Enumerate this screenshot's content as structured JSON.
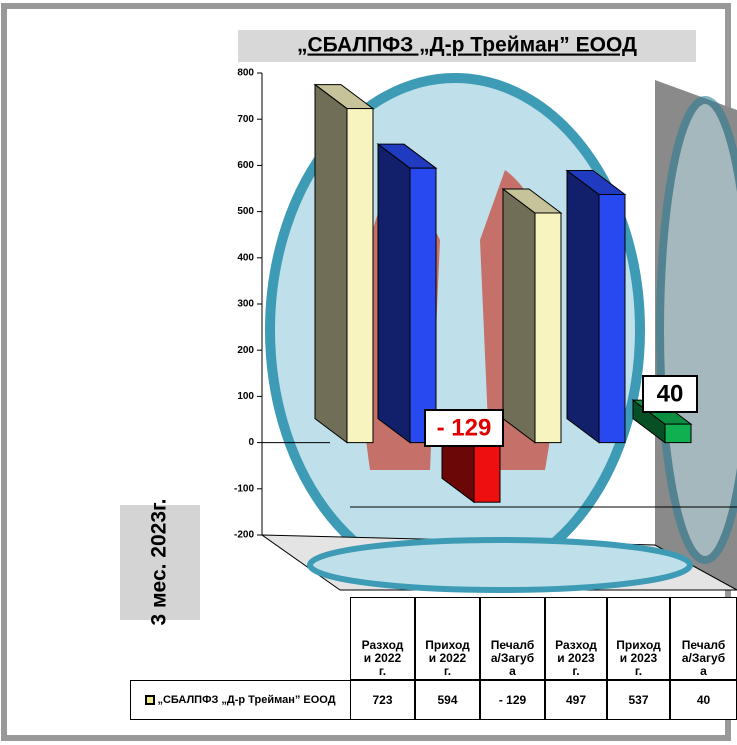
{
  "chart_data": {
    "type": "bar3d",
    "title": "„СБАЛПФЗ „Д-р Трейман” ЕООД",
    "side_label": "3 мес. 2023г.",
    "categories": [
      "Разходи 2022 г.",
      "Приходи 2022 г.",
      "Печалба/Загуба",
      "Разходи 2023 г.",
      "Приходи 2023 г.",
      "Печалба/Загуба"
    ],
    "series": [
      {
        "name": "„СБАЛПФЗ „Д-р Трейман” ЕООД",
        "color": "#f0e890",
        "values": [
          723,
          594,
          -129,
          497,
          537,
          40
        ],
        "value_labels": [
          "723",
          "594",
          "- 129",
          "497",
          "537",
          "40"
        ]
      }
    ],
    "colors": [
      "#f8f4c0",
      "#2848f0",
      "#ee1010",
      "#f8f4c0",
      "#2848f0",
      "#10b050"
    ],
    "ylim": [
      -200,
      800
    ],
    "yticks": [
      -200,
      -100,
      0,
      100,
      200,
      300,
      400,
      500,
      600,
      700,
      800
    ]
  }
}
